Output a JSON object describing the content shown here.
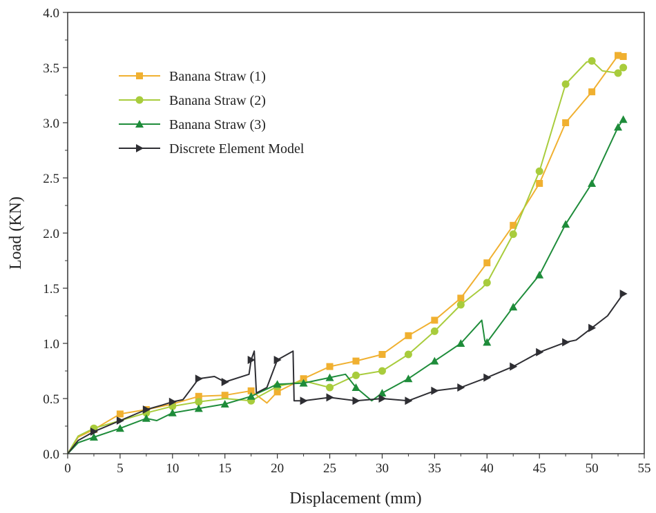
{
  "chart_data": {
    "type": "line",
    "xlabel": "Displacement (mm)",
    "ylabel": "Load (KN)",
    "xlim": [
      0,
      55
    ],
    "ylim": [
      0,
      4.0
    ],
    "x_ticks": [
      0,
      5,
      10,
      15,
      20,
      25,
      30,
      35,
      40,
      45,
      50,
      55
    ],
    "y_ticks": [
      "0.0",
      "0.5",
      "1.0",
      "1.5",
      "2.0",
      "2.5",
      "3.0",
      "3.5",
      "4.0"
    ],
    "grid": false,
    "legend_position": "upper-left",
    "series": [
      {
        "name": "Banana Straw (1)",
        "color": "#F0B030",
        "marker": "square",
        "points": [
          [
            0,
            0
          ],
          [
            1,
            0.15
          ],
          [
            2.5,
            0.22
          ],
          [
            5,
            0.36
          ],
          [
            7.5,
            0.4
          ],
          [
            10,
            0.45
          ],
          [
            12.5,
            0.52
          ],
          [
            15,
            0.53
          ],
          [
            17.5,
            0.57
          ],
          [
            19,
            0.46
          ],
          [
            20,
            0.56
          ],
          [
            22.5,
            0.68
          ],
          [
            25,
            0.79
          ],
          [
            27.5,
            0.84
          ],
          [
            30,
            0.9
          ],
          [
            32.5,
            1.07
          ],
          [
            35,
            1.21
          ],
          [
            37.5,
            1.41
          ],
          [
            40,
            1.73
          ],
          [
            42.5,
            2.07
          ],
          [
            45,
            2.45
          ],
          [
            47.5,
            3.0
          ],
          [
            50,
            3.28
          ],
          [
            52.5,
            3.61
          ],
          [
            53,
            3.6
          ]
        ],
        "markers_x": [
          2.5,
          5,
          7.5,
          10,
          12.5,
          15,
          17.5,
          20,
          22.5,
          25,
          27.5,
          30,
          32.5,
          35,
          37.5,
          40,
          42.5,
          45,
          47.5,
          50,
          52.5,
          53
        ]
      },
      {
        "name": "Banana Straw (2)",
        "color": "#A8CC3C",
        "marker": "circle",
        "points": [
          [
            0,
            0
          ],
          [
            1,
            0.16
          ],
          [
            2.5,
            0.23
          ],
          [
            5,
            0.3
          ],
          [
            7.5,
            0.37
          ],
          [
            10,
            0.43
          ],
          [
            12.5,
            0.47
          ],
          [
            15,
            0.5
          ],
          [
            17.5,
            0.48
          ],
          [
            20,
            0.61
          ],
          [
            22.5,
            0.66
          ],
          [
            25,
            0.6
          ],
          [
            27.5,
            0.71
          ],
          [
            30,
            0.75
          ],
          [
            32.5,
            0.9
          ],
          [
            35,
            1.11
          ],
          [
            37.5,
            1.35
          ],
          [
            39.5,
            1.5
          ],
          [
            40,
            1.55
          ],
          [
            42.5,
            1.99
          ],
          [
            45,
            2.56
          ],
          [
            47.5,
            3.35
          ],
          [
            49.5,
            3.55
          ],
          [
            50,
            3.56
          ],
          [
            51,
            3.47
          ],
          [
            52.5,
            3.45
          ],
          [
            53,
            3.5
          ]
        ],
        "markers_x": [
          2.5,
          7.5,
          10,
          12.5,
          17.5,
          20,
          25,
          27.5,
          30,
          32.5,
          35,
          37.5,
          40,
          42.5,
          45,
          47.5,
          50,
          52.5,
          53
        ]
      },
      {
        "name": "Banana Straw (3)",
        "color": "#1E8C3A",
        "marker": "triangle-up",
        "points": [
          [
            0,
            0
          ],
          [
            1,
            0.1
          ],
          [
            2.5,
            0.15
          ],
          [
            5,
            0.23
          ],
          [
            7.5,
            0.32
          ],
          [
            8.5,
            0.3
          ],
          [
            10,
            0.37
          ],
          [
            12.5,
            0.41
          ],
          [
            15,
            0.45
          ],
          [
            17.5,
            0.52
          ],
          [
            20,
            0.63
          ],
          [
            22.5,
            0.64
          ],
          [
            25,
            0.69
          ],
          [
            26.5,
            0.72
          ],
          [
            27.5,
            0.6
          ],
          [
            29,
            0.48
          ],
          [
            30,
            0.55
          ],
          [
            32.5,
            0.68
          ],
          [
            35,
            0.84
          ],
          [
            37.5,
            1.0
          ],
          [
            39.5,
            1.21
          ],
          [
            39.8,
            1.02
          ],
          [
            40,
            1.01
          ],
          [
            42.5,
            1.33
          ],
          [
            45,
            1.62
          ],
          [
            47.5,
            2.08
          ],
          [
            50,
            2.45
          ],
          [
            52.5,
            2.96
          ],
          [
            53,
            3.03
          ]
        ],
        "markers_x": [
          2.5,
          5,
          7.5,
          10,
          12.5,
          15,
          17.5,
          20,
          22.5,
          25,
          27.5,
          30,
          32.5,
          35,
          37.5,
          40,
          42.5,
          45,
          47.5,
          50,
          52.5,
          53
        ]
      },
      {
        "name": "Discrete Element Model",
        "color": "#2E2E33",
        "marker": "triangle-right",
        "points": [
          [
            0,
            0
          ],
          [
            1,
            0.12
          ],
          [
            2.5,
            0.2
          ],
          [
            3,
            0.22
          ],
          [
            5,
            0.3
          ],
          [
            7.5,
            0.4
          ],
          [
            9,
            0.44
          ],
          [
            10,
            0.47
          ],
          [
            11,
            0.49
          ],
          [
            12.5,
            0.68
          ],
          [
            14,
            0.7
          ],
          [
            15,
            0.65
          ],
          [
            17.3,
            0.72
          ],
          [
            17.5,
            0.85
          ],
          [
            17.8,
            0.93
          ],
          [
            18,
            0.55
          ],
          [
            19,
            0.6
          ],
          [
            20,
            0.85
          ],
          [
            21.5,
            0.93
          ],
          [
            21.6,
            0.48
          ],
          [
            22.5,
            0.48
          ],
          [
            25,
            0.51
          ],
          [
            27.5,
            0.48
          ],
          [
            30,
            0.5
          ],
          [
            32.5,
            0.48
          ],
          [
            35,
            0.57
          ],
          [
            37.5,
            0.6
          ],
          [
            40,
            0.69
          ],
          [
            42.5,
            0.79
          ],
          [
            45,
            0.92
          ],
          [
            47.5,
            1.01
          ],
          [
            48.5,
            1.03
          ],
          [
            50,
            1.14
          ],
          [
            51.5,
            1.25
          ],
          [
            53,
            1.45
          ]
        ],
        "markers_x": [
          2.5,
          5,
          7.5,
          10,
          12.5,
          15,
          17.5,
          20,
          22.5,
          25,
          27.5,
          30,
          32.5,
          35,
          37.5,
          40,
          42.5,
          45,
          47.5,
          50,
          53
        ]
      }
    ]
  }
}
